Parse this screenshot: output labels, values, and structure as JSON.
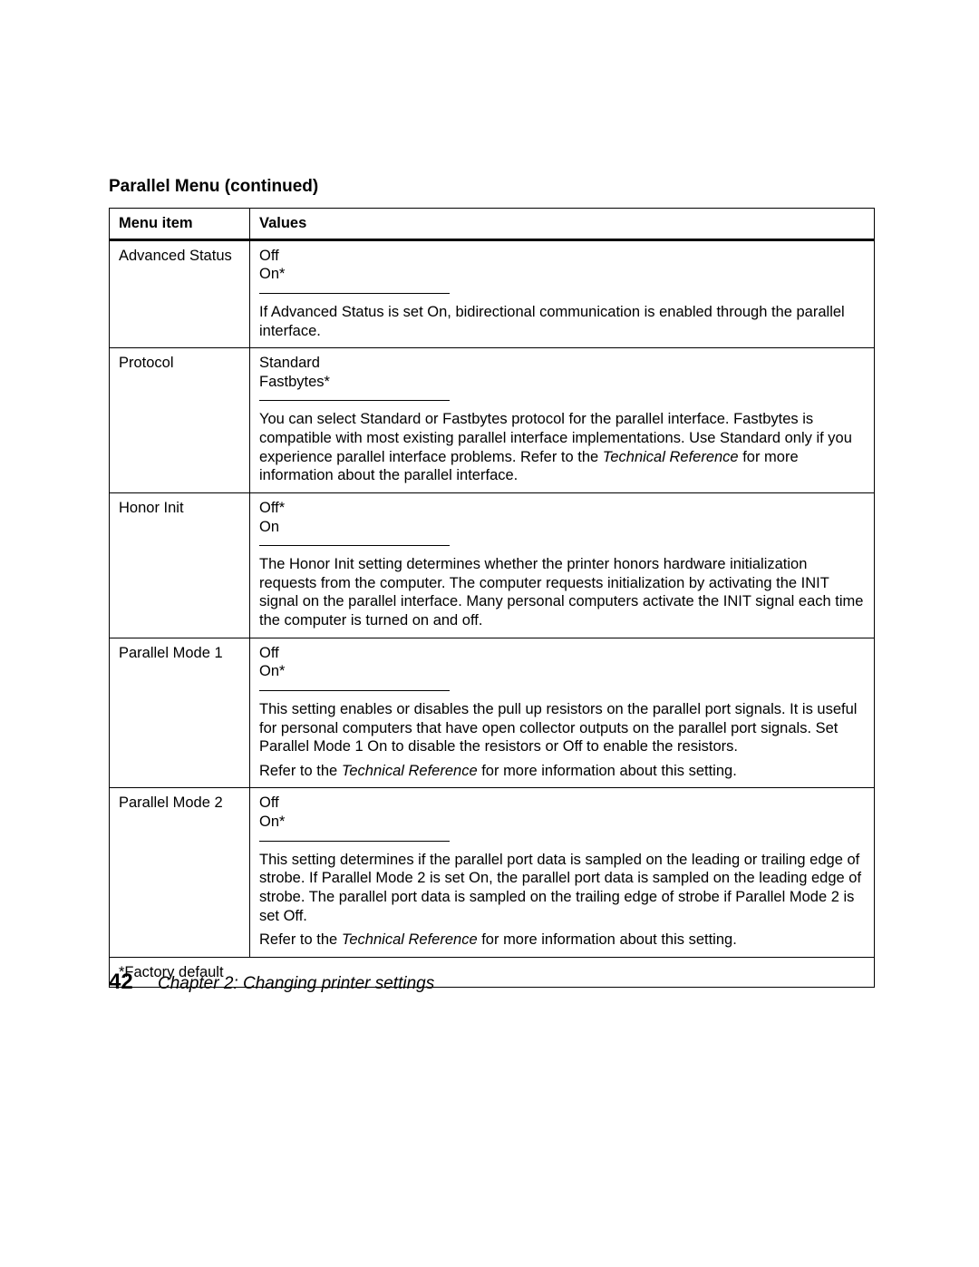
{
  "section_title": "Parallel Menu (continued)",
  "table": {
    "headers": {
      "menu_item": "Menu item",
      "values": "Values"
    },
    "rows": [
      {
        "menu_item": "Advanced Status",
        "options": [
          "Off",
          "On*"
        ],
        "desc_pre": "If Advanced Status is set On, bidirectional communication is enabled through the parallel interface."
      },
      {
        "menu_item": "Protocol",
        "options": [
          "Standard",
          "Fastbytes*"
        ],
        "desc_pre": "You can select Standard or Fastbytes protocol for the parallel interface. Fastbytes is compatible with most existing parallel interface implementations. Use Standard only if you experience parallel interface problems. Refer to the ",
        "italic": "Technical Reference",
        "desc_post": " for more information about the parallel interface."
      },
      {
        "menu_item": "Honor Init",
        "options": [
          "Off*",
          "On"
        ],
        "desc_pre": "The Honor Init setting determines whether the printer honors hardware initialization requests from the computer. The computer requests initialization by activating the INIT signal on the parallel interface. Many personal computers activate the INIT signal each time the computer is turned on and off."
      },
      {
        "menu_item": "Parallel Mode 1",
        "options": [
          "Off",
          "On*"
        ],
        "desc_pre": "This setting enables or disables the pull up resistors on the parallel port signals. It is useful for personal computers that have open collector outputs on the parallel port signals. Set Parallel Mode 1 On to disable the resistors or Off to enable the resistors.",
        "ref_pre": "Refer to the ",
        "ref_italic": "Technical Reference",
        "ref_post": " for more information about this setting."
      },
      {
        "menu_item": "Parallel Mode 2",
        "options": [
          "Off",
          "On*"
        ],
        "desc_pre": "This setting determines if the parallel port data is sampled on the leading or trailing edge of strobe. If Parallel Mode 2 is set On, the parallel port data is sampled on the leading edge of strobe. The parallel port data is sampled on the trailing edge of strobe if Parallel Mode 2 is set Off.",
        "ref_pre": "Refer to the ",
        "ref_italic": "Technical Reference",
        "ref_post": " for more information about this setting."
      }
    ],
    "footnote": "*Factory default"
  },
  "footer": {
    "page_number": "42",
    "chapter": "Chapter 2: Changing printer settings"
  }
}
